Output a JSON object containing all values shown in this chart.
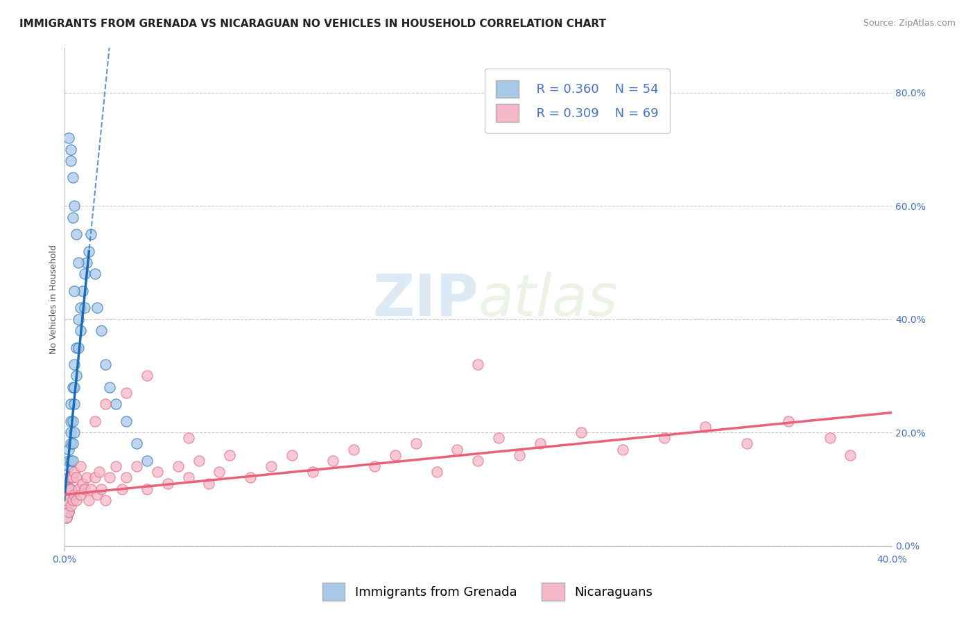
{
  "title": "IMMIGRANTS FROM GRENADA VS NICARAGUAN NO VEHICLES IN HOUSEHOLD CORRELATION CHART",
  "source": "Source: ZipAtlas.com",
  "ylabel": "No Vehicles in Household",
  "xlim": [
    0.0,
    0.4
  ],
  "ylim": [
    -0.01,
    0.88
  ],
  "R_blue": 0.36,
  "N_blue": 54,
  "R_pink": 0.309,
  "N_pink": 69,
  "legend_label_blue": "Immigrants from Grenada",
  "legend_label_pink": "Nicaraguans",
  "blue_color": "#a8c8e8",
  "pink_color": "#f4b8c8",
  "blue_line_color": "#1a6bb5",
  "pink_line_color": "#e8607a",
  "watermark_zip": "ZIP",
  "watermark_atlas": "atlas",
  "background_color": "#ffffff",
  "blue_scatter_x": [
    0.001,
    0.001,
    0.002,
    0.002,
    0.002,
    0.002,
    0.002,
    0.002,
    0.002,
    0.003,
    0.003,
    0.003,
    0.003,
    0.003,
    0.003,
    0.003,
    0.004,
    0.004,
    0.004,
    0.004,
    0.005,
    0.005,
    0.005,
    0.005,
    0.006,
    0.006,
    0.007,
    0.007,
    0.008,
    0.008,
    0.009,
    0.01,
    0.01,
    0.011,
    0.012,
    0.013,
    0.015,
    0.016,
    0.018,
    0.02,
    0.022,
    0.025,
    0.03,
    0.035,
    0.04,
    0.005,
    0.004,
    0.003,
    0.006,
    0.007,
    0.002,
    0.003,
    0.004,
    0.005
  ],
  "blue_scatter_y": [
    0.05,
    0.08,
    0.06,
    0.09,
    0.1,
    0.12,
    0.14,
    0.15,
    0.17,
    0.1,
    0.12,
    0.15,
    0.18,
    0.2,
    0.22,
    0.25,
    0.15,
    0.18,
    0.22,
    0.28,
    0.2,
    0.25,
    0.28,
    0.32,
    0.3,
    0.35,
    0.35,
    0.4,
    0.38,
    0.42,
    0.45,
    0.42,
    0.48,
    0.5,
    0.52,
    0.55,
    0.48,
    0.42,
    0.38,
    0.32,
    0.28,
    0.25,
    0.22,
    0.18,
    0.15,
    0.6,
    0.65,
    0.7,
    0.55,
    0.5,
    0.72,
    0.68,
    0.58,
    0.45
  ],
  "pink_scatter_x": [
    0.001,
    0.001,
    0.002,
    0.002,
    0.003,
    0.003,
    0.003,
    0.004,
    0.004,
    0.005,
    0.005,
    0.006,
    0.006,
    0.007,
    0.008,
    0.008,
    0.009,
    0.01,
    0.011,
    0.012,
    0.013,
    0.015,
    0.016,
    0.017,
    0.018,
    0.02,
    0.022,
    0.025,
    0.028,
    0.03,
    0.035,
    0.04,
    0.045,
    0.05,
    0.055,
    0.06,
    0.065,
    0.07,
    0.075,
    0.08,
    0.09,
    0.1,
    0.11,
    0.12,
    0.13,
    0.14,
    0.15,
    0.16,
    0.17,
    0.18,
    0.19,
    0.2,
    0.21,
    0.22,
    0.23,
    0.25,
    0.27,
    0.29,
    0.31,
    0.33,
    0.35,
    0.37,
    0.38,
    0.02,
    0.03,
    0.04,
    0.015,
    0.06,
    0.2
  ],
  "pink_scatter_y": [
    0.05,
    0.08,
    0.06,
    0.1,
    0.07,
    0.1,
    0.12,
    0.08,
    0.12,
    0.09,
    0.13,
    0.08,
    0.12,
    0.1,
    0.09,
    0.14,
    0.11,
    0.1,
    0.12,
    0.08,
    0.1,
    0.12,
    0.09,
    0.13,
    0.1,
    0.08,
    0.12,
    0.14,
    0.1,
    0.12,
    0.14,
    0.1,
    0.13,
    0.11,
    0.14,
    0.12,
    0.15,
    0.11,
    0.13,
    0.16,
    0.12,
    0.14,
    0.16,
    0.13,
    0.15,
    0.17,
    0.14,
    0.16,
    0.18,
    0.13,
    0.17,
    0.15,
    0.19,
    0.16,
    0.18,
    0.2,
    0.17,
    0.19,
    0.21,
    0.18,
    0.22,
    0.19,
    0.16,
    0.25,
    0.27,
    0.3,
    0.22,
    0.19,
    0.32
  ],
  "title_fontsize": 11,
  "axis_label_fontsize": 9,
  "tick_fontsize": 10,
  "legend_fontsize": 13,
  "yticks": [
    0.0,
    0.2,
    0.4,
    0.6,
    0.8
  ]
}
